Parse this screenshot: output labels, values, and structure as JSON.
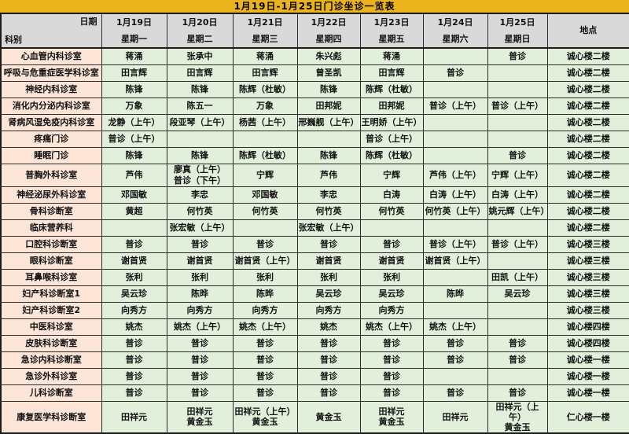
{
  "title": "1月19日-1月25日门诊坐诊一览表",
  "header": {
    "date_label": "日期",
    "dept_label": "科别",
    "location_label": "地点",
    "days": [
      {
        "date": "1月19日",
        "weekday": "星期一"
      },
      {
        "date": "1月20日",
        "weekday": "星期二"
      },
      {
        "date": "1月21日",
        "weekday": "星期三"
      },
      {
        "date": "1月22日",
        "weekday": "星期四"
      },
      {
        "date": "1月23日",
        "weekday": "星期五"
      },
      {
        "date": "1月24日",
        "weekday": "星期六"
      },
      {
        "date": "1月25日",
        "weekday": "星期日"
      }
    ]
  },
  "colors": {
    "title_bg": "#ecb41c",
    "header_bg": "#d9d9d9",
    "dept_bg": "#fce4d6",
    "cell_bg": "#e2efda",
    "border": "#2b2b2b"
  },
  "rows": [
    {
      "dept": "心血管内科诊室",
      "cells": [
        "蒋涌",
        "张承中",
        "蒋涌",
        "朱兴彪",
        "蒋涌",
        "",
        "普诊"
      ],
      "location": "诚心楼二楼",
      "tall": false
    },
    {
      "dept": "呼吸与危重症医学科诊室",
      "cells": [
        "田言辉",
        "田言辉",
        "田言辉",
        "曾圣凯",
        "田言辉",
        "普诊",
        ""
      ],
      "location": "诚心楼二楼",
      "tall": false
    },
    {
      "dept": "神经内科诊室",
      "cells": [
        "陈锋",
        "陈锋",
        "陈辉（杜敏）",
        "陈锋",
        "陈辉（杜敏）",
        "",
        ""
      ],
      "location": "诚心楼二楼",
      "tall": false
    },
    {
      "dept": "消化内分泌内科诊室",
      "cells": [
        "万象",
        "陈五一",
        "万象",
        "田邦妮",
        "田邦妮",
        "普诊（上午）",
        "普诊（上午）"
      ],
      "location": "诚心楼二楼",
      "tall": false
    },
    {
      "dept": "肾病风湿免疫内科诊室",
      "cells": [
        "龙静（上午）",
        "段亚琴（上午）",
        "杨茜（上午）",
        "邢巍舰（上午）",
        "王明娇（上午）",
        "",
        ""
      ],
      "location": "诚心楼二楼",
      "tall": false
    },
    {
      "dept": "疼痛门诊",
      "cells": [
        "普诊（上午）",
        "",
        "",
        "",
        "普诊（上午）",
        "",
        ""
      ],
      "location": "诚心楼二楼",
      "tall": false
    },
    {
      "dept": "睡眠门诊",
      "cells": [
        "陈锋",
        "陈锋",
        "陈辉（杜敏）",
        "陈锋",
        "陈辉（杜敏）",
        "",
        "普诊"
      ],
      "location": "诚心楼二楼",
      "tall": false
    },
    {
      "dept": "普胸外科诊室",
      "cells": [
        "芦伟",
        "廖真（上午）\n普诊（下午）",
        "宁辉",
        "芦伟",
        "宁辉",
        "芦伟（上午）",
        "宁辉（上午）"
      ],
      "location": "诚心楼二楼",
      "tall": true
    },
    {
      "dept": "神经泌尿外科诊室",
      "cells": [
        "邓国敏",
        "李忠",
        "邓国敏",
        "李忠",
        "白涛",
        "白涛（上午）",
        "白涛（上午）"
      ],
      "location": "诚心楼二楼",
      "tall": false
    },
    {
      "dept": "骨科诊断室",
      "cells": [
        "黄超",
        "何竹英",
        "何竹英",
        "何竹英",
        "何竹英",
        "何竹英（上午）",
        "姚元辉（上午）"
      ],
      "location": "诚心楼二楼",
      "tall": false
    },
    {
      "dept": "临床营养科",
      "cells": [
        "",
        "张宏敏（上午）",
        "",
        "张宏敏（上午）",
        "",
        "",
        ""
      ],
      "location": "诚心楼二楼",
      "tall": false
    },
    {
      "dept": "口腔科诊断室",
      "cells": [
        "普诊",
        "普诊",
        "普诊",
        "普诊",
        "普诊",
        "普诊（上午）",
        "普诊（上午）"
      ],
      "location": "诚心楼三楼",
      "tall": false
    },
    {
      "dept": "眼科诊断室",
      "cells": [
        "谢首贤",
        "谢首贤",
        "谢首贤（上午）",
        "谢首贤",
        "谢首贤",
        "谢首贤（上午）",
        ""
      ],
      "location": "诚心楼三楼",
      "tall": false
    },
    {
      "dept": "耳鼻喉科诊室",
      "cells": [
        "张利",
        "张利",
        "张利",
        "张利",
        "张利",
        "",
        "田凯（上午）"
      ],
      "location": "诚心楼三楼",
      "tall": false
    },
    {
      "dept": "妇产科诊断室1",
      "cells": [
        "吴云珍",
        "陈晔",
        "陈晔",
        "吴云珍",
        "吴云珍",
        "陈晔",
        "吴云珍"
      ],
      "location": "诚心楼三楼",
      "tall": false
    },
    {
      "dept": "妇产科诊断室2",
      "cells": [
        "向秀方",
        "向秀方",
        "向秀方",
        "向秀方",
        "向秀方",
        "",
        ""
      ],
      "location": "诚心楼三楼",
      "tall": false
    },
    {
      "dept": "中医科诊室",
      "cells": [
        "姚杰",
        "姚杰（上午）",
        "姚杰（上午）",
        "姚杰",
        "姚杰（上午）",
        "姚杰（上午）",
        ""
      ],
      "location": "诚心楼四楼",
      "tall": false
    },
    {
      "dept": "皮肤科诊断室",
      "cells": [
        "普诊",
        "普诊",
        "普诊",
        "普诊",
        "普诊",
        "普诊",
        "普诊"
      ],
      "location": "诚心楼四楼",
      "tall": false
    },
    {
      "dept": "急诊内科诊断室",
      "cells": [
        "普诊",
        "普诊",
        "普诊",
        "普诊",
        "普诊",
        "普诊",
        "普诊"
      ],
      "location": "诚心楼一楼",
      "tall": false
    },
    {
      "dept": "急诊外科诊室",
      "cells": [
        "普诊",
        "普诊",
        "普诊",
        "普诊",
        "普诊",
        "",
        ""
      ],
      "location": "诚心楼一楼",
      "tall": false
    },
    {
      "dept": "儿科诊断室",
      "cells": [
        "普诊",
        "普诊",
        "普诊",
        "普诊",
        "普诊",
        "普诊",
        "普诊"
      ],
      "location": "诚心楼一楼",
      "tall": false
    },
    {
      "dept": "康复医学科诊断室",
      "cells": [
        "田祥元",
        "田祥元\n黄金玉",
        "田祥元（上午）\n黄金玉",
        "黄金玉",
        "田祥元\n黄金玉",
        "田祥元",
        "田祥元（上午）\n黄金玉"
      ],
      "location": "仁心楼一楼",
      "tall": true
    }
  ]
}
